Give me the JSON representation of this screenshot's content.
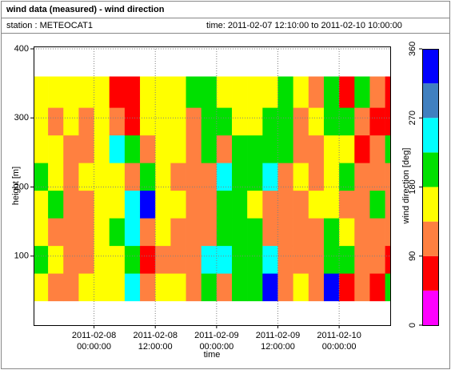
{
  "chart_data": {
    "type": "heatmap",
    "title": "wind data (measured) - wind direction",
    "station": "station : METEOCAT1",
    "period": "time: 2011-02-07 12:10:00 to 2011-02-10 10:00:00",
    "x_label": "time",
    "y_label": "height [m]",
    "colorbar_label": "wind direction [deg]",
    "xlim": [
      "2011-02-07 12:10:00",
      "2011-02-10 10:00:00"
    ],
    "xticks": [
      "2011-02-08 00:00:00",
      "2011-02-08 12:00:00",
      "2011-02-09 00:00:00",
      "2011-02-09 12:00:00",
      "2011-02-10 00:00:00"
    ],
    "ylim": [
      0,
      400
    ],
    "yticks": [
      100,
      200,
      300,
      400
    ],
    "grid": true,
    "x": [
      "2011-02-07 12:10:00",
      "2011-02-07 15:00:00",
      "2011-02-07 18:00:00",
      "2011-02-07 21:00:00",
      "2011-02-08 00:00:00",
      "2011-02-08 03:00:00",
      "2011-02-08 06:00:00",
      "2011-02-08 09:00:00",
      "2011-02-08 12:00:00",
      "2011-02-08 15:00:00",
      "2011-02-08 18:00:00",
      "2011-02-08 21:00:00",
      "2011-02-09 00:00:00",
      "2011-02-09 03:00:00",
      "2011-02-09 06:00:00",
      "2011-02-09 09:00:00",
      "2011-02-09 12:00:00",
      "2011-02-09 15:00:00",
      "2011-02-09 18:00:00",
      "2011-02-09 21:00:00",
      "2011-02-10 00:00:00",
      "2011-02-10 03:00:00",
      "2011-02-10 06:00:00",
      "2011-02-10 09:00:00",
      "2011-02-10 10:00:00"
    ],
    "y": [
      35,
      75,
      115,
      155,
      195,
      235,
      275,
      315,
      360
    ],
    "values": [
      [
        155,
        200,
        155,
        155,
        200,
        155,
        155,
        155
      ],
      [
        110,
        155,
        110,
        200,
        155,
        155,
        110,
        155
      ],
      [
        110,
        110,
        110,
        110,
        110,
        110,
        155,
        155
      ],
      [
        155,
        110,
        110,
        110,
        155,
        110,
        110,
        155
      ],
      [
        155,
        155,
        155,
        155,
        155,
        155,
        155,
        155
      ],
      [
        155,
        155,
        200,
        155,
        155,
        245,
        110,
        65
      ],
      [
        245,
        200,
        245,
        245,
        110,
        200,
        65,
        65
      ],
      [
        110,
        65,
        110,
        335,
        200,
        110,
        155,
        155
      ],
      [
        155,
        110,
        155,
        155,
        155,
        155,
        155,
        155
      ],
      [
        155,
        110,
        110,
        155,
        110,
        155,
        155,
        155
      ],
      [
        110,
        110,
        110,
        110,
        110,
        110,
        110,
        200
      ],
      [
        200,
        245,
        110,
        110,
        110,
        200,
        200,
        200
      ],
      [
        110,
        245,
        200,
        200,
        245,
        110,
        200,
        155
      ],
      [
        200,
        200,
        200,
        200,
        200,
        200,
        155,
        155
      ],
      [
        200,
        200,
        200,
        155,
        200,
        200,
        155,
        155
      ],
      [
        335,
        245,
        110,
        110,
        245,
        200,
        200,
        155
      ],
      [
        110,
        110,
        110,
        110,
        110,
        200,
        200,
        200
      ],
      [
        155,
        110,
        110,
        110,
        155,
        110,
        110,
        155
      ],
      [
        110,
        110,
        110,
        155,
        110,
        110,
        155,
        110
      ],
      [
        335,
        200,
        200,
        155,
        155,
        155,
        200,
        200
      ],
      [
        65,
        200,
        155,
        110,
        200,
        155,
        200,
        65
      ],
      [
        110,
        110,
        110,
        110,
        110,
        65,
        110,
        200
      ],
      [
        65,
        110,
        110,
        200,
        110,
        110,
        65,
        110
      ],
      [
        200,
        65,
        110,
        110,
        110,
        200,
        65,
        65
      ]
    ],
    "color_levels": [
      0,
      45,
      90,
      135,
      180,
      225,
      270,
      315,
      360
    ],
    "colors": [
      "#ff00ff",
      "#ff0000",
      "#ff8040",
      "#ffff00",
      "#00e000",
      "#00ffff",
      "#4080c0",
      "#0000ff"
    ],
    "clim": [
      0,
      360
    ],
    "cticks": [
      0,
      90,
      180,
      270,
      360
    ]
  }
}
